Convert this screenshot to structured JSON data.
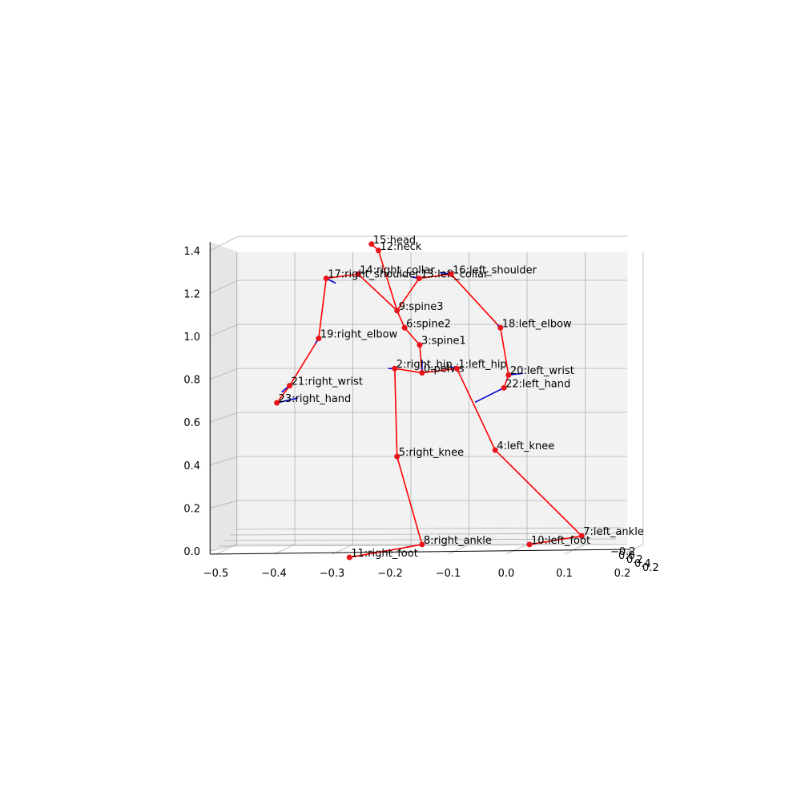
{
  "chart_data": {
    "type": "scatter",
    "subtype": "3d-skeleton",
    "title": "",
    "xlabel": "",
    "ylabel": "",
    "zlabel": "",
    "grid": true,
    "x_ticks": [
      "−0.5",
      "−0.4",
      "−0.3",
      "−0.2",
      "−0.1",
      "0.0",
      "0.1",
      "0.2"
    ],
    "z_ticks": [
      "0.0",
      "0.2",
      "0.4",
      "0.6",
      "0.8",
      "1.0",
      "1.2",
      "1.4"
    ],
    "depth_ticks": [
      "−0.2",
      "0.0",
      "0.2",
      "0.4",
      "0.2"
    ],
    "x_range": [
      -0.5,
      0.2
    ],
    "z_range": [
      0.0,
      1.4
    ],
    "joints": [
      {
        "id": 0,
        "label": "0:pelvis",
        "x": -0.145,
        "z": 0.83
      },
      {
        "id": 1,
        "label": "1:left_hip",
        "x": -0.085,
        "z": 0.85
      },
      {
        "id": 2,
        "label": "2:right_hip",
        "x": -0.192,
        "z": 0.85
      },
      {
        "id": 3,
        "label": "3:spine1",
        "x": -0.149,
        "z": 0.96
      },
      {
        "id": 4,
        "label": "4:left_knee",
        "x": -0.019,
        "z": 0.47
      },
      {
        "id": 5,
        "label": "5:right_knee",
        "x": -0.188,
        "z": 0.44
      },
      {
        "id": 6,
        "label": "6:spine2",
        "x": -0.175,
        "z": 1.04
      },
      {
        "id": 7,
        "label": "7:left_ankle",
        "x": 0.13,
        "z": 0.07
      },
      {
        "id": 8,
        "label": "8:right_ankle",
        "x": -0.145,
        "z": 0.03
      },
      {
        "id": 9,
        "label": "9:spine3",
        "x": -0.188,
        "z": 1.12
      },
      {
        "id": 10,
        "label": "10:left_foot",
        "x": 0.04,
        "z": 0.03
      },
      {
        "id": 11,
        "label": "11:right_foot",
        "x": -0.27,
        "z": -0.03
      },
      {
        "id": 12,
        "label": "12:neck",
        "x": -0.22,
        "z": 1.4
      },
      {
        "id": 13,
        "label": "13:left_collar",
        "x": -0.15,
        "z": 1.27
      },
      {
        "id": 14,
        "label": "14:right_collar",
        "x": -0.255,
        "z": 1.29
      },
      {
        "id": 15,
        "label": "15:head",
        "x": -0.232,
        "z": 1.43
      },
      {
        "id": 16,
        "label": "16:left_shoulder",
        "x": -0.095,
        "z": 1.29
      },
      {
        "id": 17,
        "label": "17:right_shoulder",
        "x": -0.31,
        "z": 1.27
      },
      {
        "id": 18,
        "label": "18:left_elbow",
        "x": -0.01,
        "z": 1.04
      },
      {
        "id": 19,
        "label": "19:right_elbow",
        "x": -0.323,
        "z": 0.99
      },
      {
        "id": 20,
        "label": "20:left_wrist",
        "x": 0.004,
        "z": 0.82
      },
      {
        "id": 21,
        "label": "21:right_wrist",
        "x": -0.373,
        "z": 0.77
      },
      {
        "id": 22,
        "label": "22:left_hand",
        "x": -0.004,
        "z": 0.76
      },
      {
        "id": 23,
        "label": "23:right_hand",
        "x": -0.395,
        "z": 0.69
      }
    ],
    "bones": [
      [
        0,
        1
      ],
      [
        0,
        2
      ],
      [
        0,
        3
      ],
      [
        1,
        4
      ],
      [
        2,
        5
      ],
      [
        3,
        6
      ],
      [
        4,
        7
      ],
      [
        5,
        8
      ],
      [
        6,
        9
      ],
      [
        7,
        10
      ],
      [
        8,
        11
      ],
      [
        9,
        12
      ],
      [
        9,
        13
      ],
      [
        9,
        14
      ],
      [
        12,
        15
      ],
      [
        13,
        16
      ],
      [
        14,
        17
      ],
      [
        16,
        18
      ],
      [
        17,
        19
      ],
      [
        18,
        20
      ],
      [
        19,
        21
      ],
      [
        20,
        22
      ],
      [
        21,
        23
      ]
    ],
    "colors": {
      "bones": "#ff0000",
      "joints": "#e8141b",
      "orientation": "#0000cc",
      "grid": "#b0b0b0",
      "pane": "#f2f2f2"
    }
  }
}
